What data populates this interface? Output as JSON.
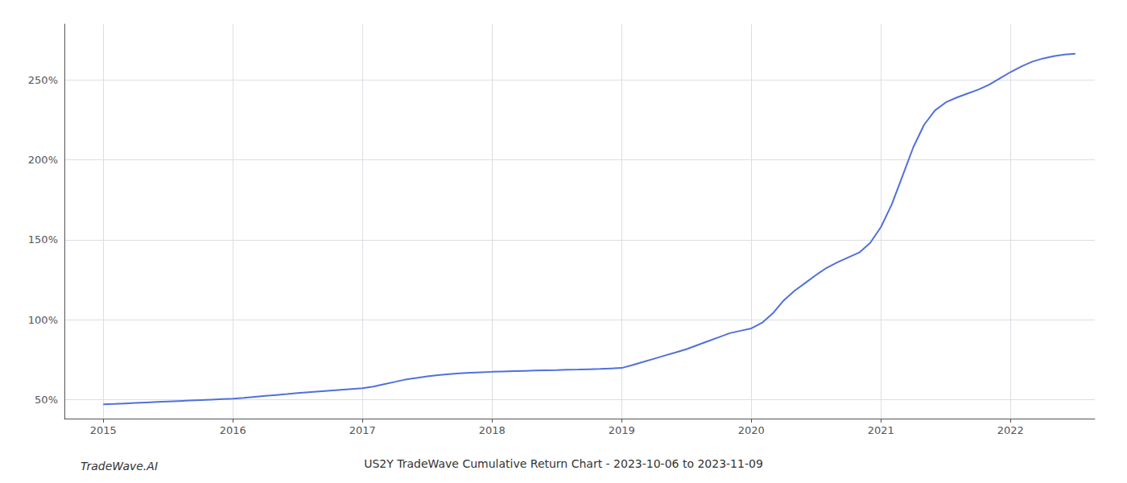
{
  "chart_data": {
    "type": "line",
    "title": "US2Y TradeWave Cumulative Return Chart - 2023-10-06 to 2023-11-09",
    "annotations": [
      "TradeWave.AI"
    ],
    "x": [
      2015.0,
      2015.083,
      2015.167,
      2015.25,
      2015.333,
      2015.417,
      2015.5,
      2015.583,
      2015.667,
      2015.75,
      2015.833,
      2015.917,
      2016.0,
      2016.083,
      2016.167,
      2016.25,
      2016.333,
      2016.417,
      2016.5,
      2016.583,
      2016.667,
      2016.75,
      2016.833,
      2016.917,
      2017.0,
      2017.083,
      2017.167,
      2017.25,
      2017.333,
      2017.417,
      2017.5,
      2017.583,
      2017.667,
      2017.75,
      2017.833,
      2017.917,
      2018.0,
      2018.083,
      2018.167,
      2018.25,
      2018.333,
      2018.417,
      2018.5,
      2018.583,
      2018.667,
      2018.75,
      2018.833,
      2018.917,
      2019.0,
      2019.083,
      2019.167,
      2019.25,
      2019.333,
      2019.417,
      2019.5,
      2019.583,
      2019.667,
      2019.75,
      2019.833,
      2019.917,
      2020.0,
      2020.083,
      2020.167,
      2020.25,
      2020.333,
      2020.417,
      2020.5,
      2020.583,
      2020.667,
      2020.75,
      2020.833,
      2020.917,
      2021.0,
      2021.083,
      2021.167,
      2021.25,
      2021.333,
      2021.417,
      2021.5,
      2021.583,
      2021.667,
      2021.75,
      2021.833,
      2021.917,
      2022.0,
      2022.083,
      2022.167,
      2022.25,
      2022.333,
      2022.417,
      2022.5
    ],
    "values": [
      47.0,
      47.2,
      47.5,
      47.8,
      48.1,
      48.4,
      48.7,
      49.0,
      49.3,
      49.6,
      49.9,
      50.2,
      50.5,
      51.0,
      51.6,
      52.2,
      52.8,
      53.4,
      54.0,
      54.5,
      55.0,
      55.5,
      56.0,
      56.5,
      57.0,
      58.0,
      59.5,
      61.0,
      62.5,
      63.5,
      64.5,
      65.2,
      65.8,
      66.3,
      66.7,
      67.0,
      67.3,
      67.5,
      67.7,
      67.9,
      68.1,
      68.3,
      68.4,
      68.6,
      68.7,
      68.9,
      69.1,
      69.4,
      69.7,
      71.5,
      73.5,
      75.5,
      77.5,
      79.5,
      81.5,
      84.0,
      86.5,
      89.0,
      91.5,
      93.0,
      94.5,
      98.0,
      104.0,
      112.0,
      118.0,
      123.0,
      128.0,
      132.5,
      136.0,
      139.0,
      142.0,
      148.0,
      158.0,
      172.0,
      190.0,
      208.0,
      222.0,
      231.0,
      236.0,
      239.0,
      241.5,
      244.0,
      247.0,
      251.0,
      255.0,
      258.5,
      261.5,
      263.5,
      265.0,
      266.0,
      266.5
    ],
    "xlim": [
      2014.7,
      2022.65
    ],
    "xticks": [
      2015,
      2016,
      2017,
      2018,
      2019,
      2020,
      2021,
      2022
    ],
    "ylim": [
      38,
      285
    ],
    "yticks": [
      {
        "value": 50,
        "label": "50%"
      },
      {
        "value": 100,
        "label": "100%"
      },
      {
        "value": 150,
        "label": "150%"
      },
      {
        "value": 200,
        "label": "200%"
      },
      {
        "value": 250,
        "label": "250%"
      }
    ],
    "grid": true
  }
}
